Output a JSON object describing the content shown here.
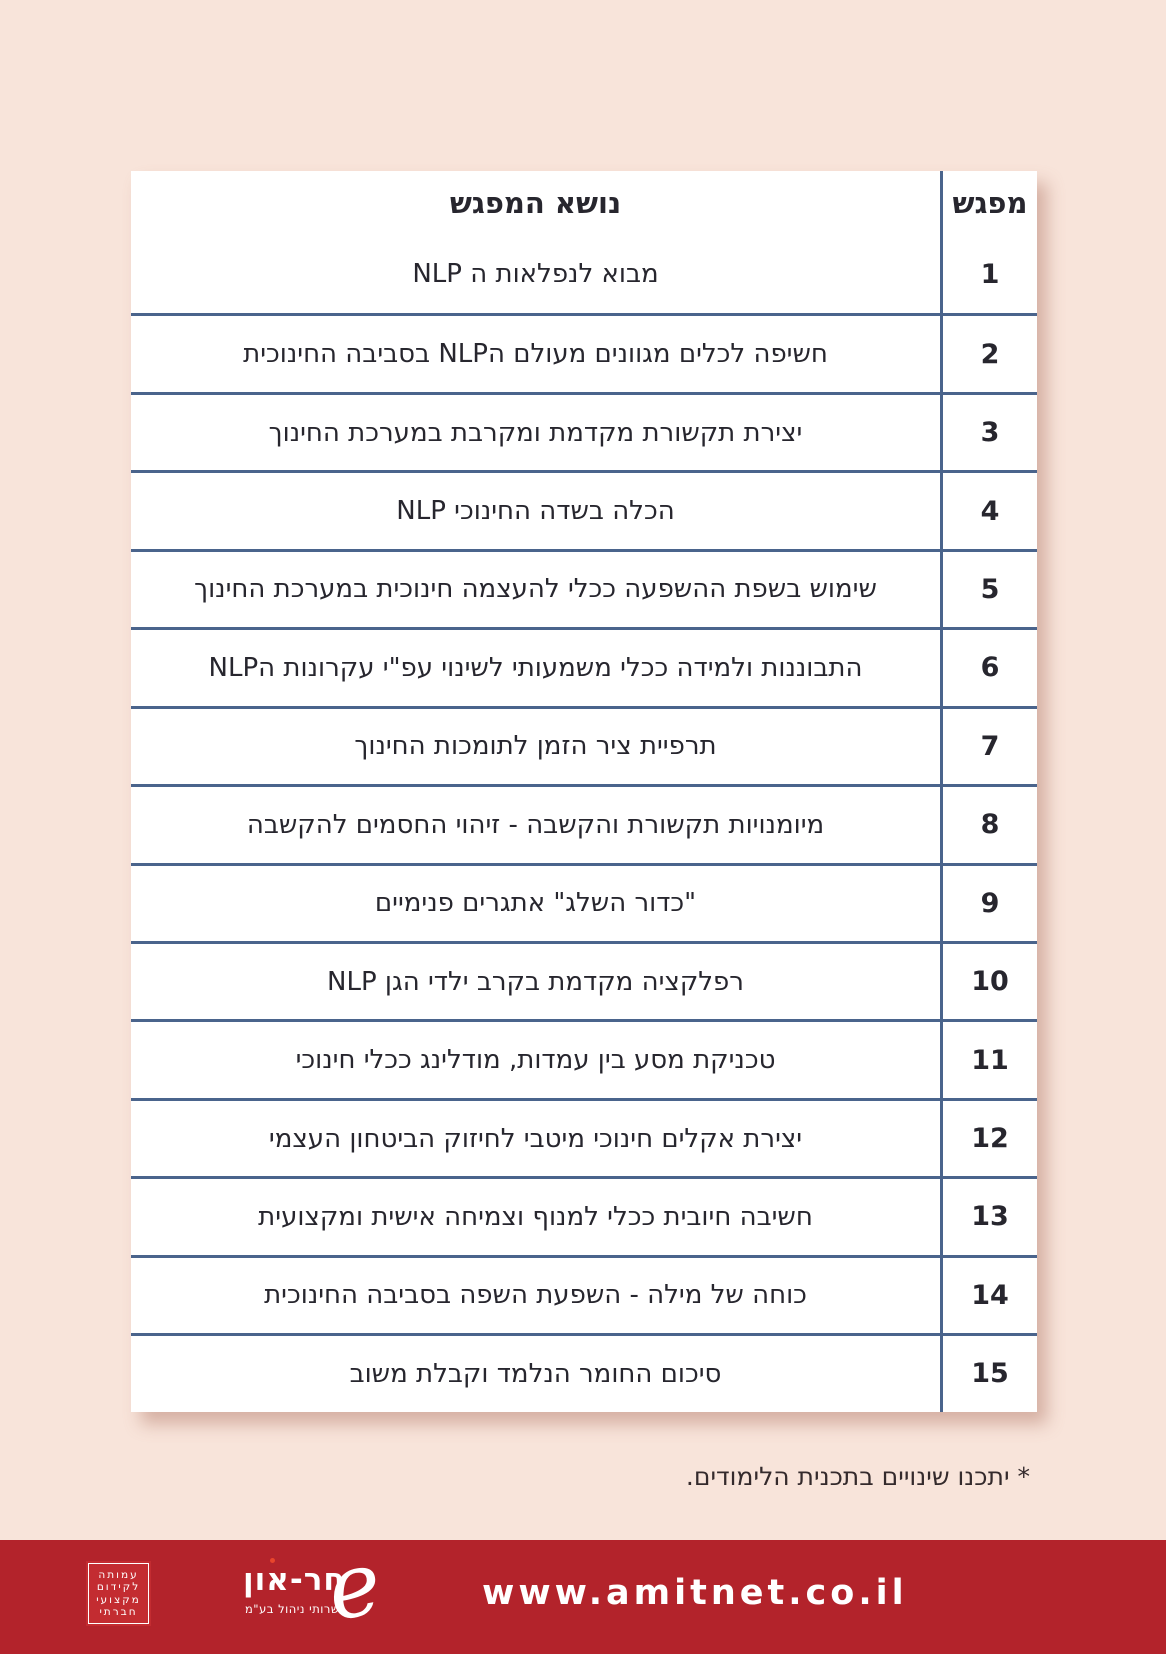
{
  "colors": {
    "background": "#f8e4da",
    "card": "#ffffff",
    "table_line": "#4a648c",
    "text": "#27262e",
    "banner_red": "#b3232b",
    "logo_red": "#c32c31",
    "footer_text": "#ffffff"
  },
  "table": {
    "header": {
      "topic": "נושא המפגש",
      "session": "מפגש"
    },
    "rows": [
      {
        "num": "1",
        "topic": "מבוא לנפלאות ה NLP"
      },
      {
        "num": "2",
        "topic": "חשיפה לכלים מגוונים מעולם הNLP בסביבה החינוכית"
      },
      {
        "num": "3",
        "topic": "יצירת תקשורת מקדמת ומקרבת במערכת החינוך"
      },
      {
        "num": "4",
        "topic": "הכלה בשדה החינוכי NLP"
      },
      {
        "num": "5",
        "topic": "שימוש בשפת ההשפעה ככלי להעצמה חינוכית במערכת החינוך"
      },
      {
        "num": "6",
        "topic": "התבוננות ולמידה ככלי משמעותי לשינוי עפ\"י עקרונות הNLP"
      },
      {
        "num": "7",
        "topic": "תרפיית ציר הזמן לתומכות החינוך"
      },
      {
        "num": "8",
        "topic": "מיומנויות תקשורת והקשבה - זיהוי החסמים להקשבה"
      },
      {
        "num": "9",
        "topic": "\"כדור השלג\" אתגרים פנימיים"
      },
      {
        "num": "10",
        "topic": "רפלקציה מקדמת בקרב ילדי הגן NLP"
      },
      {
        "num": "11",
        "topic": "טכניקת מסע בין עמדות, מודלינג ככלי חינוכי"
      },
      {
        "num": "12",
        "topic": "יצירת אקלים חינוכי מיטבי לחיזוק הביטחון העצמי"
      },
      {
        "num": "13",
        "topic": "חשיבה חיובית ככלי למנוף וצמיחה אישית ומקצועית"
      },
      {
        "num": "14",
        "topic": "כוחה של מילה - השפעת השפה בסביבה החינוכית"
      },
      {
        "num": "15",
        "topic": "סיכום  החומר הנלמד וקבלת משוב"
      }
    ]
  },
  "footnote": "* יתכנו שינויים בתכנית הלימודים.",
  "footer": {
    "url": "www.amitnet.co.il",
    "association_logo": {
      "lines": [
        "עמותה",
        "לקידום",
        "מקצועי",
        "חברתי"
      ]
    },
    "shaharon_logo": {
      "glyph_char": "e",
      "name": "חר-און",
      "subtitle": "שרותי ניהול בע\"מ"
    }
  }
}
